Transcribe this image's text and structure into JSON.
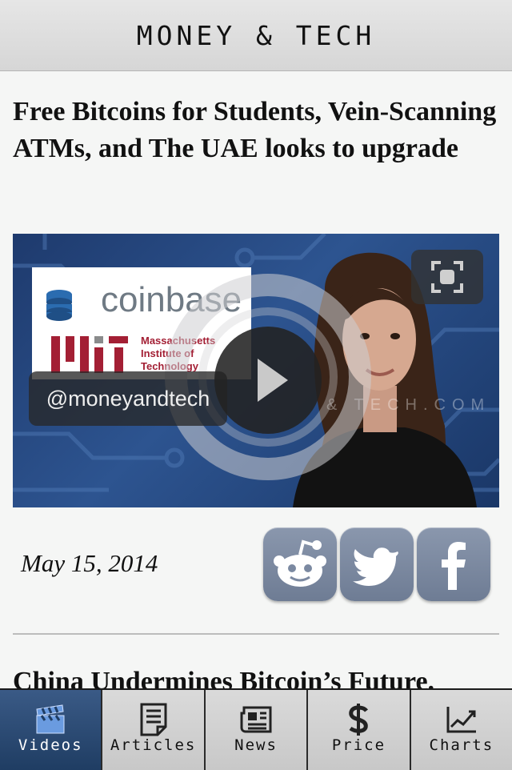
{
  "header": {
    "title": "MONEY & TECH"
  },
  "article": {
    "headline": "Free Bitcoins for Students, Vein-Scanning ATMs, and The UAE looks to upgrade",
    "video": {
      "coinbase_text": "coinbase",
      "mit_text": "Massachusetts Institute of Technology",
      "watermark": "& TECH.COM",
      "handle": "@moneyandtech"
    },
    "date": "May 15, 2014"
  },
  "share_icons": [
    "reddit-icon",
    "twitter-icon",
    "facebook-icon"
  ],
  "next_article": {
    "headline": "China Undermines Bitcoin’s Future."
  },
  "tabs": [
    {
      "label": "Videos",
      "icon": "clapperboard-icon",
      "active": true
    },
    {
      "label": "Articles",
      "icon": "document-icon",
      "active": false
    },
    {
      "label": "News",
      "icon": "newspaper-icon",
      "active": false
    },
    {
      "label": "Price",
      "icon": "dollar-icon",
      "active": false
    },
    {
      "label": "Charts",
      "icon": "line-chart-icon",
      "active": false
    }
  ],
  "colors": {
    "tab_active": "#2a4a73",
    "share_button": "#7b89a1",
    "mit_red": "#a31f34"
  }
}
